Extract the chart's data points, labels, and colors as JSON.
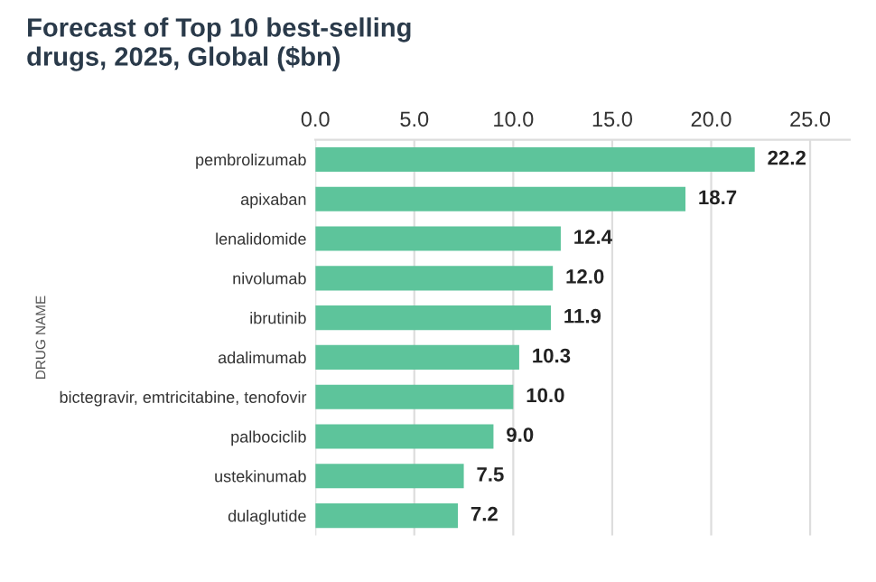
{
  "chart_data": {
    "type": "bar",
    "orientation": "horizontal",
    "title": "Forecast of Top 10 best-selling\ndrugs, 2025, Global ($bn)",
    "ylabel": "DRUG NAME",
    "categories": [
      "pembrolizumab",
      "apixaban",
      "lenalidomide",
      "nivolumab",
      "ibrutinib",
      "adalimumab",
      "bictegravir, emtricitabine, tenofovir",
      "palbociclib",
      "ustekinumab",
      "dulaglutide"
    ],
    "values": [
      22.2,
      18.7,
      12.4,
      12.0,
      11.9,
      10.3,
      10.0,
      9.0,
      7.5,
      7.2
    ],
    "value_labels": [
      "22.2",
      "18.7",
      "12.4",
      "12.0",
      "11.9",
      "10.3",
      "10.0",
      "9.0",
      "7.5",
      "7.2"
    ],
    "color": "#5dc49b",
    "xlim": [
      0,
      27
    ],
    "xticks": [
      {
        "value": 0,
        "label": "0.0"
      },
      {
        "value": 5,
        "label": "5.0"
      },
      {
        "value": 10,
        "label": "10.0"
      },
      {
        "value": 15,
        "label": "15.0"
      },
      {
        "value": 20,
        "label": "20.0"
      },
      {
        "value": 25,
        "label": "25.0"
      }
    ],
    "grid": "x"
  }
}
